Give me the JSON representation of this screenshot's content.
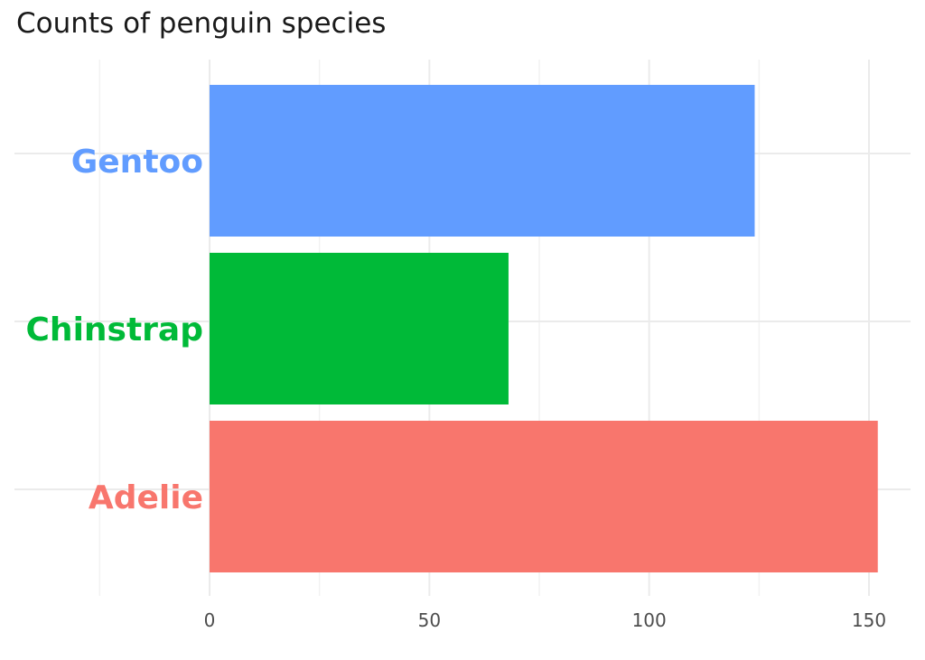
{
  "chart_data": {
    "type": "bar",
    "orientation": "horizontal",
    "title": "Counts of penguin species",
    "xlabel": "",
    "ylabel": "",
    "categories": [
      "Adelie",
      "Chinstrap",
      "Gentoo"
    ],
    "values": [
      152,
      68,
      124
    ],
    "colors": [
      "#F8766D",
      "#00BA38",
      "#619CFF"
    ],
    "x_ticks": [
      0,
      50,
      100,
      150
    ],
    "xlim": [
      -25,
      158
    ],
    "grid": true,
    "legend": "none"
  }
}
